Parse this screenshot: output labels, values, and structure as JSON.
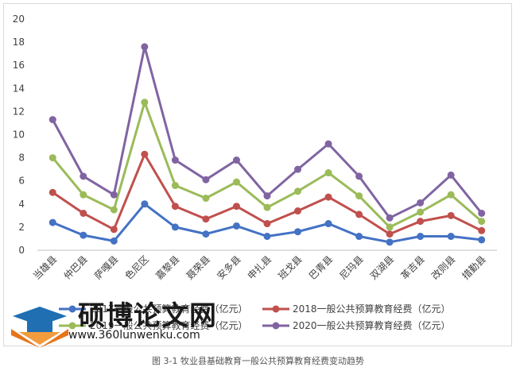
{
  "chart_data": {
    "type": "line",
    "categories": [
      "当雄县",
      "仲巴县",
      "萨嘎县",
      "色尼区",
      "嘉黎县",
      "聂荣县",
      "安多县",
      "申扎县",
      "班戈县",
      "巴青县",
      "尼玛县",
      "双湖县",
      "革吉县",
      "改则县",
      "措勤县"
    ],
    "ylim": [
      0,
      20
    ],
    "yticks": [
      "0",
      "2",
      "4",
      "6",
      "8",
      "10",
      "12",
      "14",
      "16",
      "18",
      "20"
    ],
    "grid": false,
    "legend_position": "bottom",
    "series": [
      {
        "name": "2017一般公共预算教育经费（亿元）",
        "color": "#4472C4",
        "values": [
          2.4,
          1.3,
          0.8,
          4.0,
          2.0,
          1.4,
          2.1,
          1.2,
          1.6,
          2.3,
          1.2,
          0.7,
          1.2,
          1.2,
          0.9
        ]
      },
      {
        "name": "2018一般公共预算教育经费（亿元）",
        "color": "#C0504D",
        "values": [
          5.0,
          3.2,
          1.8,
          8.3,
          3.8,
          2.7,
          3.8,
          2.3,
          3.4,
          4.6,
          3.1,
          1.4,
          2.5,
          3.0,
          1.7
        ]
      },
      {
        "name": "2019一般公共预算教育经费（亿元）",
        "color": "#9BBB59",
        "values": [
          8.0,
          4.8,
          3.5,
          12.8,
          5.6,
          4.5,
          5.9,
          3.7,
          5.1,
          6.7,
          4.7,
          2.0,
          3.3,
          4.8,
          2.5
        ]
      },
      {
        "name": "2020一般公共预算教育经费（亿元）",
        "color": "#8064A2",
        "values": [
          11.3,
          6.4,
          4.8,
          17.6,
          7.8,
          6.1,
          7.8,
          4.7,
          7.0,
          9.2,
          6.4,
          2.8,
          4.1,
          6.5,
          3.2
        ]
      }
    ]
  },
  "legend_labels": {
    "s2017": "2017一般公共预算教育经费（亿元）",
    "s2018": "2018一般公共预算教育经费（亿元）",
    "s2019": "2019一般公共预算教育经费（亿元）",
    "s2020": "2020一般公共预算教育经费（亿元）"
  },
  "watermark": {
    "title": "硕博论文网",
    "url": "www.360lunwenku.com"
  },
  "caption": "图 3-1 牧业县基础教育一般公共预算教育经费变动趋势"
}
